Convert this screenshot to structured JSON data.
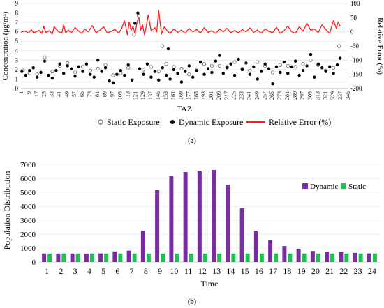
{
  "figure": {
    "panel_a_caption": "(a)",
    "panel_b_caption": "(b)"
  },
  "colors": {
    "relative_error": "#ff1a1a",
    "dynamic_bar": "#7a2da0",
    "static_bar": "#1fbf55",
    "dynamic_point": "#000000",
    "static_point": "#ffffff"
  },
  "chart_data": [
    {
      "type": "scatter",
      "xlabel": "TAZ",
      "ylabel": "Concentration (μg/m³)",
      "y2label": "Relative Error (%)",
      "ylim": [
        0,
        9
      ],
      "y_ticks": [
        0,
        1,
        2,
        3,
        4,
        5,
        6,
        7,
        8,
        9
      ],
      "y2lim": [
        -200,
        100
      ],
      "y2_ticks": [
        -200,
        -150,
        -100,
        -50,
        0,
        50,
        100
      ],
      "xlim": [
        1,
        345
      ],
      "x_ticks": [
        1,
        9,
        17,
        25,
        33,
        41,
        49,
        57,
        65,
        73,
        81,
        89,
        97,
        105,
        113,
        121,
        129,
        137,
        145,
        153,
        161,
        169,
        177,
        185,
        193,
        201,
        209,
        217,
        225,
        233,
        241,
        249,
        257,
        265,
        273,
        281,
        289,
        297,
        305,
        313,
        321,
        329,
        337,
        345
      ],
      "legend_position": "bottom",
      "series": [
        {
          "name": "Static Exposure",
          "marker": "open-circle",
          "x": [
            3,
            10,
            18,
            26,
            34,
            42,
            50,
            58,
            66,
            74,
            82,
            90,
            98,
            106,
            114,
            120,
            125,
            130,
            138,
            146,
            150,
            154,
            162,
            170,
            178,
            186,
            194,
            202,
            210,
            218,
            226,
            234,
            242,
            250,
            258,
            266,
            274,
            282,
            290,
            298,
            306,
            314,
            322,
            330,
            336
          ],
          "values": [
            1.9,
            1.6,
            1.5,
            3.3,
            1.8,
            2.4,
            2.7,
            1.7,
            2.3,
            1.9,
            2.1,
            2.5,
            1.4,
            1.6,
            2.2,
            5.7,
            7.7,
            2.0,
            2.3,
            1.8,
            4.5,
            2.6,
            2.3,
            2.1,
            1.5,
            2.0,
            2.6,
            2.4,
            2.4,
            2.3,
            2.8,
            2.1,
            1.9,
            2.8,
            2.4,
            1.7,
            2.5,
            2.4,
            2.3,
            2.6,
            3.0,
            2.5,
            1.9,
            2.2,
            4.5
          ]
        },
        {
          "name": "Dynamic Exposure",
          "marker": "filled-circle",
          "x": [
            2,
            6,
            10,
            14,
            18,
            22,
            26,
            30,
            34,
            38,
            42,
            46,
            50,
            54,
            58,
            62,
            66,
            70,
            74,
            78,
            82,
            86,
            90,
            94,
            98,
            102,
            106,
            110,
            114,
            118,
            121,
            124,
            126,
            130,
            134,
            138,
            142,
            146,
            150,
            154,
            156,
            158,
            162,
            166,
            170,
            174,
            178,
            182,
            186,
            190,
            194,
            198,
            202,
            206,
            210,
            214,
            218,
            222,
            226,
            230,
            234,
            238,
            242,
            246,
            250,
            254,
            258,
            262,
            266,
            270,
            274,
            278,
            282,
            286,
            290,
            294,
            298,
            302,
            306,
            310,
            314,
            318,
            322,
            326,
            330,
            334,
            337
          ],
          "values": [
            1.8,
            1.4,
            1.9,
            2.2,
            1.2,
            1.7,
            2.9,
            1.4,
            1.1,
            1.9,
            2.6,
            1.6,
            2.4,
            2.1,
            1.3,
            2.3,
            1.8,
            2.6,
            1.5,
            1.2,
            3.0,
            1.8,
            2.2,
            0.8,
            0.6,
            1.5,
            1.9,
            1.4,
            2.5,
            0.9,
            6.9,
            8.0,
            2.1,
            1.5,
            2.6,
            1.2,
            1.8,
            0.9,
            2.2,
            1.4,
            4.2,
            1.0,
            2.0,
            1.6,
            0.7,
            1.8,
            2.4,
            1.2,
            1.9,
            2.8,
            1.5,
            2.1,
            1.7,
            2.9,
            3.5,
            1.6,
            2.2,
            2.6,
            1.4,
            3.1,
            2.0,
            2.7,
            1.5,
            2.3,
            1.0,
            1.8,
            2.6,
            2.1,
            0.5,
            2.3,
            1.7,
            2.8,
            1.6,
            2.3,
            2.9,
            1.4,
            1.9,
            2.4,
            3.6,
            1.2,
            2.6,
            2.2,
            1.8,
            2.3,
            1.6,
            2.5,
            3.2
          ]
        },
        {
          "name": "Relative Error (%)",
          "type": "line",
          "axis": "secondary",
          "x": [
            1,
            5,
            9,
            12,
            14,
            17,
            20,
            23,
            25,
            27,
            31,
            34,
            36,
            40,
            44,
            46,
            48,
            51,
            54,
            58,
            62,
            65,
            68,
            72,
            76,
            80,
            84,
            88,
            92,
            96,
            100,
            104,
            107,
            110,
            113,
            115,
            117,
            119,
            121,
            123,
            125,
            127,
            129,
            131,
            133,
            135,
            138,
            142,
            144,
            146,
            149,
            152,
            155,
            158,
            162,
            166,
            170,
            174,
            178,
            182,
            186,
            190,
            194,
            198,
            202,
            206,
            210,
            214,
            218,
            222,
            226,
            230,
            234,
            238,
            242,
            246,
            250,
            254,
            258,
            262,
            266,
            270,
            274,
            278,
            282,
            286,
            290,
            294,
            298,
            302,
            306,
            310,
            314,
            318,
            322,
            326,
            330,
            333,
            335,
            337
          ],
          "values": [
            -2,
            3,
            -4,
            8,
            -3,
            0,
            5,
            -6,
            20,
            -2,
            4,
            -8,
            18,
            2,
            -5,
            25,
            -3,
            6,
            -4,
            15,
            2,
            -6,
            10,
            0,
            22,
            -3,
            5,
            18,
            -4,
            2,
            8,
            -5,
            12,
            40,
            -10,
            35,
            5,
            20,
            -8,
            30,
            55,
            5,
            25,
            -10,
            20,
            60,
            4,
            15,
            0,
            75,
            -8,
            18,
            3,
            -6,
            10,
            -2,
            6,
            -5,
            12,
            0,
            8,
            -4,
            15,
            -2,
            4,
            -6,
            10,
            0,
            12,
            -3,
            5,
            -4,
            8,
            0,
            14,
            -2,
            6,
            -5,
            10,
            2,
            -3,
            16,
            -6,
            4,
            20,
            0,
            -5,
            18,
            2,
            30,
            6,
            10,
            -3,
            25,
            8,
            -6,
            40,
            12,
            35,
            20
          ]
        }
      ]
    },
    {
      "type": "bar",
      "xlabel": "Time",
      "ylabel": "Population Distribution",
      "ylim": [
        0,
        7000
      ],
      "y_ticks": [
        0,
        1000,
        2000,
        3000,
        4000,
        5000,
        6000,
        7000
      ],
      "legend_position": "right",
      "categories": [
        "1",
        "2",
        "3",
        "4",
        "5",
        "6",
        "7",
        "8",
        "9",
        "10",
        "11",
        "12",
        "13",
        "14",
        "15",
        "16",
        "17",
        "18",
        "19",
        "20",
        "21",
        "22",
        "23",
        "24"
      ],
      "series": [
        {
          "name": "Dynamic",
          "values": [
            610,
            610,
            610,
            610,
            620,
            760,
            820,
            2250,
            5150,
            6150,
            6450,
            6500,
            6600,
            5550,
            3850,
            2200,
            1550,
            1150,
            950,
            790,
            740,
            740,
            660,
            620
          ]
        },
        {
          "name": "Static",
          "values": [
            610,
            610,
            610,
            610,
            610,
            610,
            610,
            610,
            610,
            610,
            610,
            610,
            610,
            610,
            610,
            610,
            610,
            610,
            610,
            610,
            610,
            610,
            610,
            610
          ]
        }
      ]
    }
  ]
}
